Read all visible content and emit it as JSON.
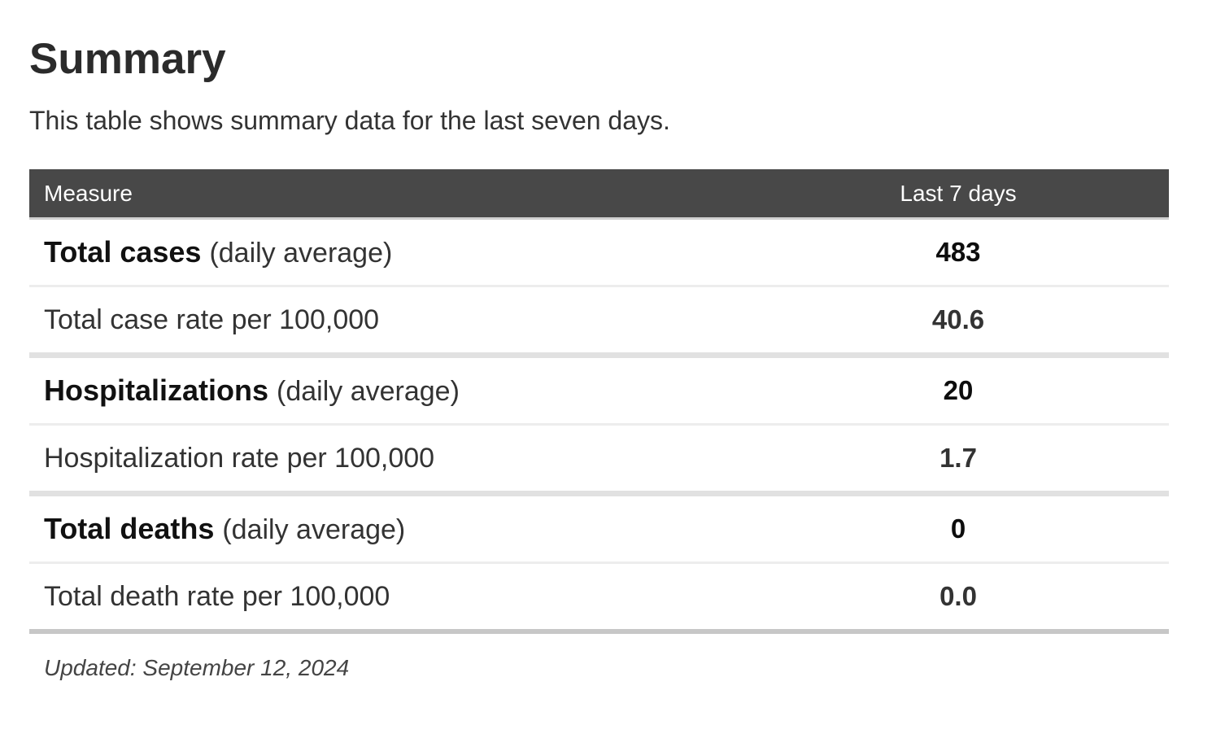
{
  "page": {
    "title": "Summary",
    "subtitle": "This table shows summary data for the last seven days.",
    "updated_note": "Updated: September 12, 2024"
  },
  "table": {
    "columns": [
      "Measure",
      "Last 7 days"
    ],
    "rows": [
      {
        "label": "Total cases",
        "suffix": "(daily average)",
        "value": "483",
        "emphasis": true
      },
      {
        "label": "Total case rate per 100,000",
        "suffix": "",
        "value": "40.6",
        "emphasis": false
      },
      {
        "label": "Hospitalizations",
        "suffix": "(daily average)",
        "value": "20",
        "emphasis": true
      },
      {
        "label": "Hospitalization rate per 100,000",
        "suffix": "",
        "value": "1.7",
        "emphasis": false
      },
      {
        "label": "Total deaths",
        "suffix": "(daily average)",
        "value": "0",
        "emphasis": true
      },
      {
        "label": "Total death rate per 100,000",
        "suffix": "",
        "value": "0.0",
        "emphasis": false
      }
    ]
  },
  "colors": {
    "header_background": "#484848",
    "header_text": "#ffffff",
    "thin_divider": "#ededed",
    "section_divider": "#e1e1e1",
    "bottom_divider": "#c7c7c7"
  },
  "chart_data": {
    "type": "table",
    "title": "Summary",
    "subtitle": "This table shows summary data for the last seven days.",
    "columns": [
      "Measure",
      "Last 7 days"
    ],
    "rows": [
      [
        "Total cases (daily average)",
        "483"
      ],
      [
        "Total case rate per 100,000",
        "40.6"
      ],
      [
        "Hospitalizations (daily average)",
        "20"
      ],
      [
        "Hospitalization rate per 100,000",
        "1.7"
      ],
      [
        "Total deaths (daily average)",
        "0"
      ],
      [
        "Total death rate per 100,000",
        "0.0"
      ]
    ],
    "footnote": "Updated: September 12, 2024"
  }
}
